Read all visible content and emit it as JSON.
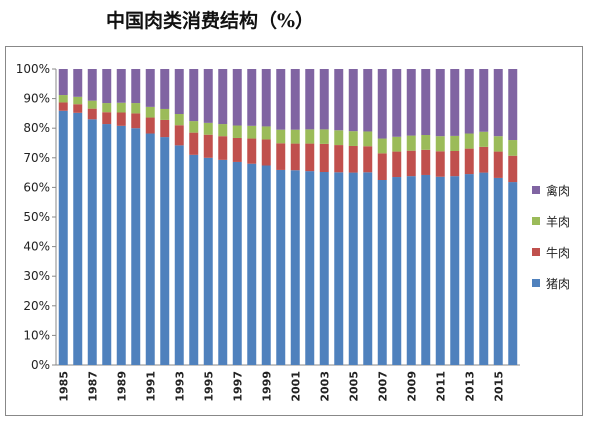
{
  "chart_data": {
    "type": "bar",
    "stacked": true,
    "title": "中国肉类消费结构（%）",
    "categories": [
      "1985",
      "1986",
      "1987",
      "1988",
      "1989",
      "1990",
      "1991",
      "1992",
      "1993",
      "1994",
      "1995",
      "1996",
      "1997",
      "1998",
      "1999",
      "2000",
      "2001",
      "2002",
      "2003",
      "2004",
      "2005",
      "2006",
      "2007",
      "2008",
      "2009",
      "2010",
      "2011",
      "2012",
      "2013",
      "2014",
      "2015",
      "2016"
    ],
    "tick_labels": [
      "1985",
      "1987",
      "1989",
      "1991",
      "1993",
      "1995",
      "1997",
      "1999",
      "2001",
      "2003",
      "2005",
      "2007",
      "2009",
      "2011",
      "2013",
      "2015"
    ],
    "series": [
      {
        "name": "猪肉",
        "color": "#4F81BD",
        "values": [
          85.9,
          85.2,
          83.0,
          81.4,
          80.8,
          80.0,
          78.2,
          77.0,
          74.2,
          71.0,
          70.0,
          69.3,
          68.6,
          68.0,
          67.4,
          65.9,
          65.8,
          65.5,
          65.2,
          65.1,
          65.0,
          65.1,
          62.5,
          63.5,
          63.8,
          64.2,
          63.6,
          63.8,
          64.5,
          65.0,
          63.2,
          61.8
        ]
      },
      {
        "name": "牛肉",
        "color": "#C0504D",
        "values": [
          2.8,
          2.9,
          3.6,
          4.0,
          4.5,
          5.0,
          5.4,
          5.8,
          6.8,
          7.5,
          7.8,
          8.0,
          8.1,
          8.5,
          8.8,
          9.0,
          9.0,
          9.3,
          9.5,
          9.2,
          9.0,
          8.8,
          9.0,
          8.6,
          8.6,
          8.5,
          8.6,
          8.5,
          8.6,
          8.7,
          8.9,
          8.9
        ]
      },
      {
        "name": "羊肉",
        "color": "#9BBB59",
        "values": [
          2.5,
          2.5,
          2.7,
          3.1,
          3.3,
          3.5,
          3.6,
          3.7,
          3.8,
          3.9,
          4.0,
          4.1,
          4.2,
          4.3,
          4.4,
          4.6,
          4.7,
          4.8,
          4.9,
          5.0,
          5.0,
          5.0,
          5.0,
          5.0,
          5.1,
          5.0,
          5.1,
          5.1,
          5.1,
          5.1,
          5.2,
          5.3
        ]
      },
      {
        "name": "禽肉",
        "color": "#8064A2",
        "values": [
          8.8,
          9.4,
          10.7,
          11.5,
          11.4,
          11.5,
          12.8,
          13.5,
          15.2,
          17.6,
          18.2,
          18.6,
          19.1,
          19.2,
          19.4,
          20.5,
          20.5,
          20.4,
          20.4,
          20.7,
          21.0,
          21.1,
          23.5,
          22.9,
          22.5,
          22.3,
          22.7,
          22.6,
          21.8,
          21.2,
          22.7,
          24.0
        ]
      }
    ],
    "ylim": [
      0,
      100
    ],
    "yticks": [
      "0%",
      "10%",
      "20%",
      "30%",
      "40%",
      "50%",
      "60%",
      "70%",
      "80%",
      "90%",
      "100%"
    ],
    "legend_position": "right",
    "grid": false
  }
}
